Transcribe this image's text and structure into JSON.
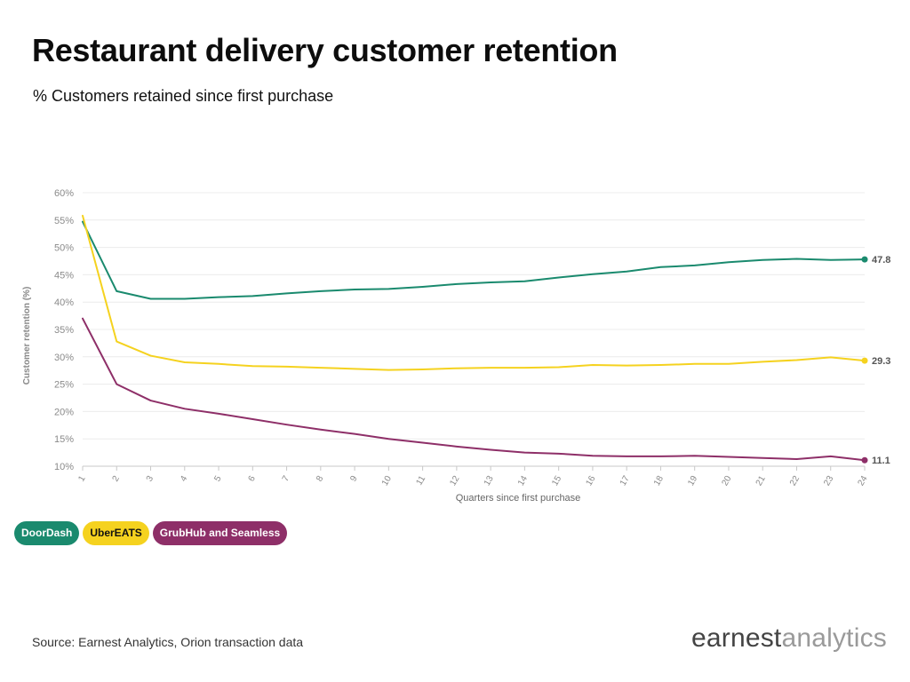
{
  "title": "Restaurant delivery customer retention",
  "subtitle": "% Customers retained since first purchase",
  "source": "Source: Earnest Analytics, Orion transaction data",
  "brand": {
    "bold": "earnest",
    "light": "analytics"
  },
  "chart_data": {
    "type": "line",
    "xlabel": "Quarters since first purchase",
    "ylabel": "Customer retention (%)",
    "x": [
      1,
      2,
      3,
      4,
      5,
      6,
      7,
      8,
      9,
      10,
      11,
      12,
      13,
      14,
      15,
      16,
      17,
      18,
      19,
      20,
      21,
      22,
      23,
      24
    ],
    "ylim": [
      10,
      60
    ],
    "yticks": [
      "10%",
      "15%",
      "20%",
      "25%",
      "30%",
      "35%",
      "40%",
      "45%",
      "50%",
      "55%",
      "60%"
    ],
    "grid": true,
    "legend_position": "bottom-left",
    "series": [
      {
        "name": "DoorDash",
        "color": "#1a8a6e",
        "text_color": "#ffffff",
        "end_label": "47.8",
        "values": [
          54.7,
          42.0,
          40.6,
          40.6,
          40.9,
          41.1,
          41.6,
          42.0,
          42.3,
          42.4,
          42.8,
          43.3,
          43.6,
          43.8,
          44.5,
          45.1,
          45.6,
          46.4,
          46.7,
          47.3,
          47.7,
          47.9,
          47.7,
          47.8
        ]
      },
      {
        "name": "UberEATS",
        "color": "#f5d21f",
        "text_color": "#111111",
        "end_label": "29.3",
        "values": [
          55.8,
          32.8,
          30.2,
          29.0,
          28.7,
          28.3,
          28.2,
          28.0,
          27.8,
          27.6,
          27.7,
          27.9,
          28.0,
          28.0,
          28.1,
          28.5,
          28.4,
          28.5,
          28.7,
          28.7,
          29.1,
          29.4,
          29.9,
          29.3
        ]
      },
      {
        "name": "GrubHub and Seamless",
        "color": "#8e2f68",
        "text_color": "#ffffff",
        "end_label": "11.1",
        "values": [
          37.0,
          25.0,
          22.0,
          20.5,
          19.6,
          18.6,
          17.6,
          16.7,
          15.9,
          15.0,
          14.3,
          13.6,
          13.0,
          12.5,
          12.3,
          11.9,
          11.8,
          11.8,
          11.9,
          11.7,
          11.5,
          11.3,
          11.8,
          11.1
        ]
      }
    ]
  }
}
